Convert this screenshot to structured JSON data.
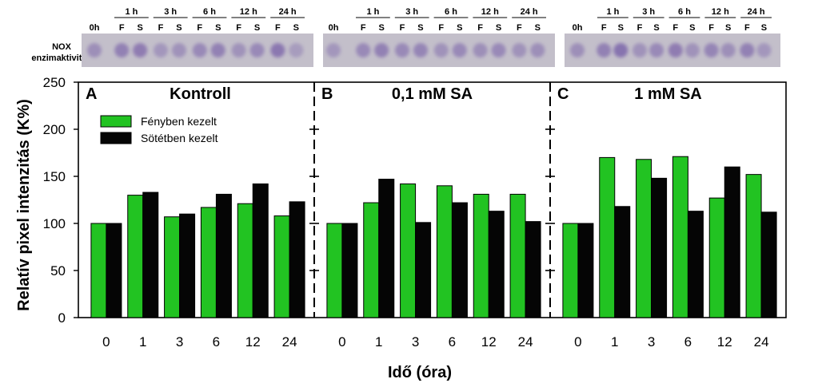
{
  "figure": {
    "ylabel": "Relatív pixel intenzitás (K%)",
    "xlabel": "Idő (óra)",
    "gel_label_line1": "NOX",
    "gel_label_line2": "enzimaktivitás",
    "colors": {
      "light": "#22c322",
      "dark": "#050505",
      "gel_bg": "#c3bfca",
      "band": "#7d66aa"
    },
    "legend": {
      "light": "Fényben kezelt",
      "dark": "Sötétben kezelt",
      "placement": "upper-left of panel A"
    }
  },
  "gel": {
    "time_labels": [
      "1 h",
      "3 h",
      "6 h",
      "12 h",
      "24 h"
    ],
    "zero_label": "0h",
    "lane_F": "F",
    "lane_S": "S"
  },
  "chart_data": [
    {
      "type": "bar",
      "panel_letter": "A",
      "title": "Kontroll",
      "categories": [
        "0",
        "1",
        "3",
        "6",
        "12",
        "24"
      ],
      "series": [
        {
          "name": "Fényben kezelt",
          "values": [
            100,
            130,
            107,
            117,
            121,
            108
          ]
        },
        {
          "name": "Sötétben kezelt",
          "values": [
            100,
            133,
            110,
            131,
            142,
            123
          ]
        }
      ],
      "ylim": [
        0,
        250
      ],
      "yticks": [
        0,
        50,
        100,
        150,
        200,
        250
      ],
      "xlabel": "Idő (óra)",
      "ylabel": "Relatív pixel intenzitás (K%)",
      "grid": false,
      "legend": "upper-left"
    },
    {
      "type": "bar",
      "panel_letter": "B",
      "title": "0,1 mM SA",
      "categories": [
        "0",
        "1",
        "3",
        "6",
        "12",
        "24"
      ],
      "series": [
        {
          "name": "Fényben kezelt",
          "values": [
            100,
            122,
            142,
            140,
            131,
            131
          ]
        },
        {
          "name": "Sötétben kezelt",
          "values": [
            100,
            147,
            101,
            122,
            113,
            102
          ]
        }
      ],
      "ylim": [
        0,
        250
      ],
      "xlabel": "Idő (óra)",
      "grid": false
    },
    {
      "type": "bar",
      "panel_letter": "C",
      "title": "1 mM SA",
      "categories": [
        "0",
        "1",
        "3",
        "6",
        "12",
        "24"
      ],
      "series": [
        {
          "name": "Fényben kezelt",
          "values": [
            100,
            170,
            168,
            171,
            127,
            152
          ]
        },
        {
          "name": "Sötétben kezelt",
          "values": [
            100,
            118,
            148,
            113,
            160,
            112
          ]
        }
      ],
      "ylim": [
        0,
        250
      ],
      "xlabel": "Idő (óra)",
      "grid": false
    }
  ]
}
